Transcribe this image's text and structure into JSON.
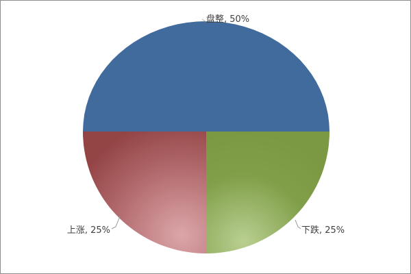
{
  "chart_data": {
    "type": "pie",
    "categories": [
      "盘整",
      "下跌",
      "上涨"
    ],
    "values": [
      50,
      25,
      25
    ],
    "labels": [
      "盘整, 50%",
      "下跌, 25%",
      "上涨, 25%"
    ],
    "colors": [
      "#416a9d",
      "#7f9e47",
      "#9c4a4b"
    ],
    "legend": "none"
  }
}
